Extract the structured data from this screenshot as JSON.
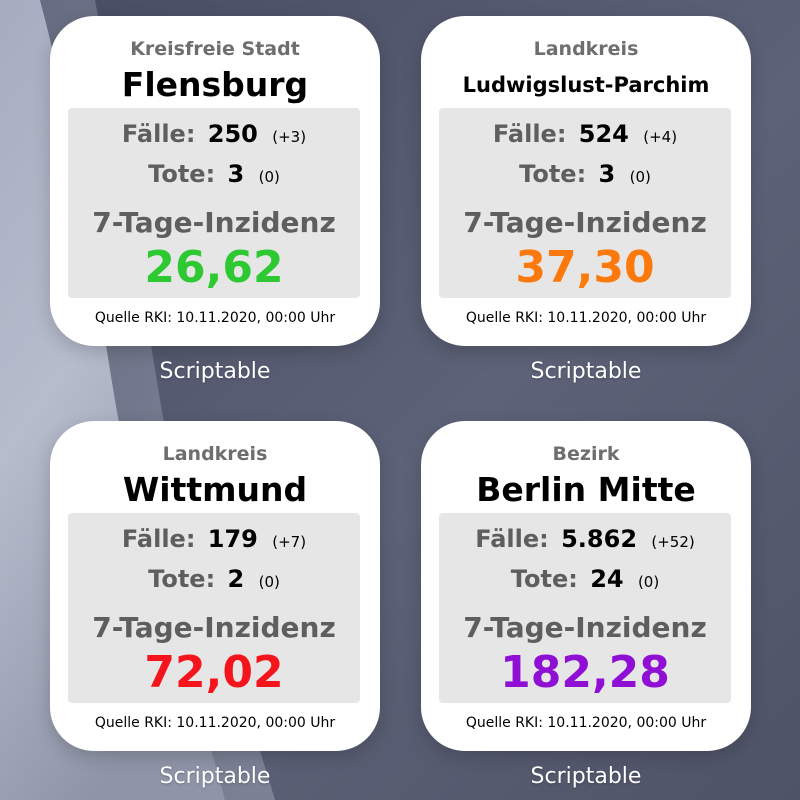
{
  "app_name": "Scriptable",
  "theme": {
    "widget_background": "#ffffff",
    "stats_box_background": "#e6e6e6",
    "label_color": "#5e5e5e",
    "value_color": "#000000"
  },
  "widgets": [
    {
      "region_type": "Kreisfreie Stadt",
      "region_name": "Flensburg",
      "cases_label": "Fälle:",
      "cases_value": "250",
      "cases_delta": "(+3)",
      "deaths_label": "Tote:",
      "deaths_value": "3",
      "deaths_delta": "(0)",
      "incidence_label": "7-Tage-Inzidenz",
      "incidence_value": "26,62",
      "incidence_color": "#2ec932",
      "source": "Quelle RKI: 10.11.2020, 00:00 Uhr",
      "app_label": "Scriptable"
    },
    {
      "region_type": "Landkreis",
      "region_name": "Ludwigslust-Parchim",
      "cases_label": "Fälle:",
      "cases_value": "524",
      "cases_delta": "(+4)",
      "deaths_label": "Tote:",
      "deaths_value": "3",
      "deaths_delta": "(0)",
      "incidence_label": "7-Tage-Inzidenz",
      "incidence_value": "37,30",
      "incidence_color": "#fc7a0d",
      "source": "Quelle RKI: 10.11.2020, 00:00 Uhr",
      "app_label": "Scriptable"
    },
    {
      "region_type": "Landkreis",
      "region_name": "Wittmund",
      "cases_label": "Fälle:",
      "cases_value": "179",
      "cases_delta": "(+7)",
      "deaths_label": "Tote:",
      "deaths_value": "2",
      "deaths_delta": "(0)",
      "incidence_label": "7-Tage-Inzidenz",
      "incidence_value": "72,02",
      "incidence_color": "#f4141b",
      "source": "Quelle RKI: 10.11.2020, 00:00 Uhr",
      "app_label": "Scriptable"
    },
    {
      "region_type": "Bezirk",
      "region_name": "Berlin Mitte",
      "cases_label": "Fälle:",
      "cases_value": "5.862",
      "cases_delta": "(+52)",
      "deaths_label": "Tote:",
      "deaths_value": "24",
      "deaths_delta": "(0)",
      "incidence_label": "7-Tage-Inzidenz",
      "incidence_value": "182,28",
      "incidence_color": "#8f10d4",
      "source": "Quelle RKI: 10.11.2020, 00:00 Uhr",
      "app_label": "Scriptable"
    }
  ]
}
